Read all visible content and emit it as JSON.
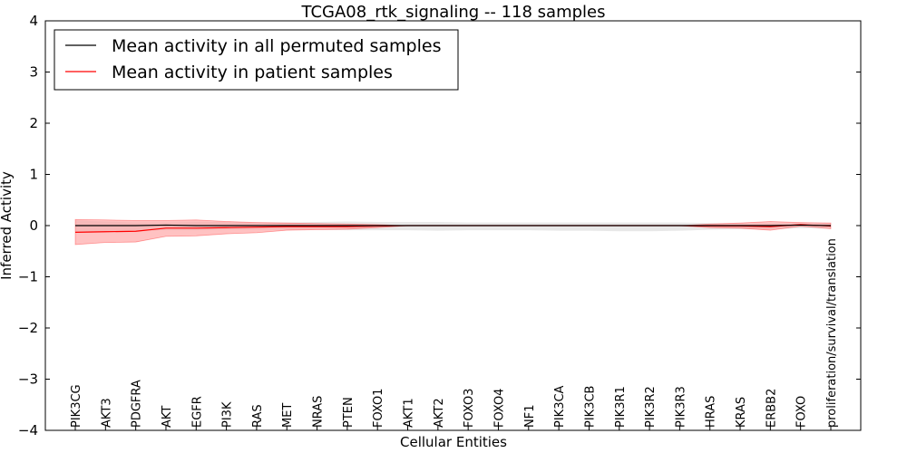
{
  "chart_data": {
    "type": "line",
    "title": "TCGA08_rtk_signaling -- 118 samples",
    "xlabel": "Cellular Entities",
    "ylabel": "Inferred Activity",
    "ylim": [
      -4,
      4
    ],
    "yticks": [
      "4",
      "3",
      "2",
      "1",
      "0",
      "−1",
      "−2",
      "−3",
      "−4"
    ],
    "ytick_values": [
      4,
      3,
      2,
      1,
      0,
      -1,
      -2,
      -3,
      -4
    ],
    "categories": [
      "PIK3CG",
      "AKT3",
      "PDGFRA",
      "AKT",
      "EGFR",
      "PI3K",
      "RAS",
      "MET",
      "NRAS",
      "PTEN",
      "FOXO1",
      "AKT1",
      "AKT2",
      "FOXO3",
      "FOXO4",
      "NF1",
      "PIK3CA",
      "PIK3CB",
      "PIK3R1",
      "PIK3R2",
      "PIK3R3",
      "HRAS",
      "KRAS",
      "ERBB2",
      "FOXO",
      "proliferation/survival/translation"
    ],
    "legend_position": "top-left",
    "series": [
      {
        "name": "Mean activity in all permuted samples",
        "color": "#000000",
        "values": [
          0.0,
          0.0,
          0.0,
          0.01,
          0.0,
          0.0,
          0.0,
          0.0,
          0.0,
          0.0,
          0.0,
          0.0,
          0.0,
          0.0,
          0.0,
          0.0,
          0.0,
          0.0,
          0.0,
          0.0,
          0.0,
          0.0,
          0.0,
          0.0,
          0.01,
          0.0
        ],
        "band_lower": [
          -0.12,
          -0.11,
          -0.1,
          -0.09,
          -0.09,
          -0.08,
          -0.08,
          -0.08,
          -0.08,
          -0.09,
          -0.09,
          -0.09,
          -0.1,
          -0.09,
          -0.09,
          -0.09,
          -0.1,
          -0.1,
          -0.11,
          -0.11,
          -0.1,
          -0.08,
          -0.07,
          -0.07,
          -0.05,
          -0.06
        ],
        "band_upper": [
          0.1,
          0.08,
          0.06,
          0.06,
          0.07,
          0.07,
          0.06,
          0.06,
          0.07,
          0.08,
          0.07,
          0.07,
          0.07,
          0.06,
          0.06,
          0.06,
          0.06,
          0.06,
          0.06,
          0.06,
          0.06,
          0.05,
          0.04,
          0.04,
          0.04,
          0.03
        ]
      },
      {
        "name": "Mean activity in patient samples",
        "color": "#ff0000",
        "fill_color": "#ff9999",
        "values": [
          -0.13,
          -0.12,
          -0.11,
          -0.05,
          -0.05,
          -0.04,
          -0.03,
          -0.02,
          -0.02,
          -0.02,
          -0.01,
          0.0,
          0.0,
          0.0,
          0.0,
          0.0,
          0.0,
          0.0,
          0.0,
          0.0,
          0.0,
          -0.01,
          -0.01,
          -0.02,
          0.02,
          -0.01
        ],
        "band_lower": [
          -0.37,
          -0.33,
          -0.32,
          -0.21,
          -0.2,
          -0.16,
          -0.14,
          -0.09,
          -0.08,
          -0.07,
          -0.04,
          0.0,
          0.0,
          0.0,
          0.0,
          0.0,
          0.0,
          0.0,
          0.0,
          0.0,
          0.0,
          -0.04,
          -0.05,
          -0.09,
          -0.01,
          -0.06
        ],
        "band_upper": [
          0.12,
          0.11,
          0.1,
          0.1,
          0.11,
          0.08,
          0.06,
          0.05,
          0.04,
          0.03,
          0.02,
          0.0,
          0.0,
          0.0,
          0.0,
          0.0,
          0.0,
          0.0,
          0.0,
          0.0,
          0.0,
          0.03,
          0.05,
          0.08,
          0.06,
          0.05
        ]
      }
    ]
  }
}
